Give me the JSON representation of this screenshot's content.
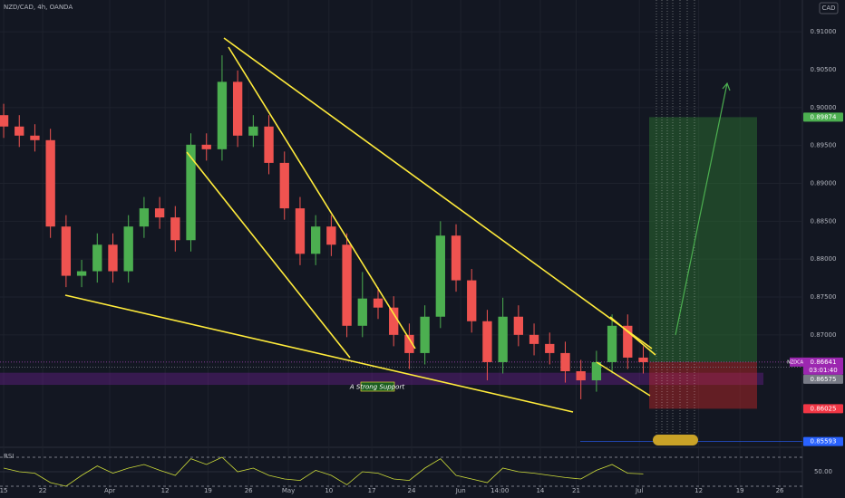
{
  "chart_data": {
    "type": "candlestick",
    "title": "NZD/CAD, 4h, OANDA",
    "currency": "CAD",
    "symbol": "NZDCAD",
    "countdown": "03:01:40",
    "annotation": "A Strong Support",
    "rsi_title": "RSI",
    "x": [
      0,
      2,
      4,
      6,
      8,
      10,
      12,
      14,
      16,
      18,
      20,
      22,
      24,
      26,
      28,
      30,
      32,
      34,
      36,
      38,
      40,
      42,
      44,
      46,
      48,
      50,
      52,
      54,
      56,
      58,
      60,
      62,
      64,
      66,
      68,
      70,
      72,
      74,
      76,
      78,
      80,
      82
    ],
    "open": [
      0.899,
      0.8975,
      0.8963,
      0.8957,
      0.8843,
      0.8778,
      0.8784,
      0.8819,
      0.8784,
      0.8843,
      0.8867,
      0.8855,
      0.8825,
      0.8951,
      0.8945,
      0.9034,
      0.8963,
      0.8975,
      0.8927,
      0.8867,
      0.8807,
      0.8843,
      0.8819,
      0.8712,
      0.8748,
      0.8736,
      0.87,
      0.8676,
      0.8724,
      0.8831,
      0.8772,
      0.8718,
      0.8664,
      0.8724,
      0.87,
      0.8688,
      0.8676,
      0.8652,
      0.864,
      0.8664,
      0.8712,
      0.867
    ],
    "high": [
      0.9005,
      0.899,
      0.8978,
      0.8972,
      0.8858,
      0.8799,
      0.8834,
      0.8834,
      0.8858,
      0.8882,
      0.8882,
      0.887,
      0.8966,
      0.8966,
      0.9069,
      0.9049,
      0.899,
      0.899,
      0.8942,
      0.8882,
      0.8858,
      0.8858,
      0.8834,
      0.8783,
      0.8763,
      0.8751,
      0.8715,
      0.8739,
      0.885,
      0.8846,
      0.8787,
      0.8733,
      0.8749,
      0.8739,
      0.8715,
      0.8703,
      0.8691,
      0.8667,
      0.8679,
      0.8727,
      0.8727,
      0.8685
    ],
    "low": [
      0.896,
      0.8948,
      0.8942,
      0.8828,
      0.8763,
      0.8763,
      0.8769,
      0.8769,
      0.8769,
      0.8828,
      0.884,
      0.881,
      0.881,
      0.893,
      0.893,
      0.8948,
      0.8948,
      0.8912,
      0.8852,
      0.8792,
      0.8792,
      0.8804,
      0.8697,
      0.8697,
      0.8721,
      0.8685,
      0.8655,
      0.8661,
      0.8709,
      0.8757,
      0.8703,
      0.864,
      0.8649,
      0.8685,
      0.8673,
      0.8661,
      0.8637,
      0.8615,
      0.8625,
      0.8649,
      0.8655,
      0.8649
    ],
    "close": [
      0.8975,
      0.8963,
      0.8957,
      0.8843,
      0.8778,
      0.8784,
      0.8819,
      0.8784,
      0.8843,
      0.8867,
      0.8855,
      0.8825,
      0.8951,
      0.8945,
      0.9034,
      0.8963,
      0.8975,
      0.8927,
      0.8867,
      0.8807,
      0.8843,
      0.8819,
      0.8712,
      0.8748,
      0.8736,
      0.87,
      0.8676,
      0.8724,
      0.8831,
      0.8772,
      0.8718,
      0.8664,
      0.8724,
      0.87,
      0.8688,
      0.8676,
      0.8652,
      0.864,
      0.8664,
      0.8712,
      0.867,
      0.8664
    ],
    "rsi": [
      55,
      50,
      48,
      35,
      30,
      45,
      58,
      48,
      55,
      60,
      52,
      45,
      68,
      60,
      70,
      50,
      55,
      45,
      40,
      38,
      52,
      45,
      32,
      50,
      48,
      40,
      38,
      55,
      68,
      45,
      40,
      35,
      55,
      50,
      48,
      45,
      42,
      40,
      52,
      60,
      48,
      47
    ],
    "up_color": "#4caf50",
    "down_color": "#ef5350",
    "xlim": [
      -0.47,
      102.4
    ],
    "ylim": [
      0.8554,
      0.9142
    ],
    "rsi_ylim": [
      20,
      80
    ],
    "rsi_ticks": [
      {
        "value": 50,
        "label": "50.00"
      }
    ],
    "yticks": [
      {
        "value": 0.91,
        "label": "0.91000"
      },
      {
        "value": 0.905,
        "label": "0.90500"
      },
      {
        "value": 0.9,
        "label": "0.90000"
      },
      {
        "value": 0.895,
        "label": "0.89500"
      },
      {
        "value": 0.89,
        "label": "0.89000"
      },
      {
        "value": 0.885,
        "label": "0.88500"
      },
      {
        "value": 0.88,
        "label": "0.88000"
      },
      {
        "value": 0.875,
        "label": "0.87500"
      },
      {
        "value": 0.87,
        "label": "0.87000"
      }
    ],
    "xticks": [
      {
        "value": 0,
        "label": "15"
      },
      {
        "value": 5,
        "label": "22"
      },
      {
        "value": 13.6,
        "label": "Apr"
      },
      {
        "value": 20.7,
        "label": "12"
      },
      {
        "value": 26.2,
        "label": "19"
      },
      {
        "value": 31.4,
        "label": "26"
      },
      {
        "value": 36.5,
        "label": "May"
      },
      {
        "value": 41.7,
        "label": "10"
      },
      {
        "value": 47.2,
        "label": "17"
      },
      {
        "value": 52.3,
        "label": "24"
      },
      {
        "value": 58.6,
        "label": "Jun"
      },
      {
        "value": 63.6,
        "label": "14:00"
      },
      {
        "value": 68.8,
        "label": "14"
      },
      {
        "value": 73.4,
        "label": "21"
      },
      {
        "value": 81.5,
        "label": "Jul"
      },
      {
        "value": 89.1,
        "label": "12"
      },
      {
        "value": 94.4,
        "label": "19"
      },
      {
        "value": 99.5,
        "label": "26"
      }
    ],
    "position": {
      "target": 0.89874,
      "entry": 0.86641,
      "stop": 0.86025
    },
    "levels": [
      0.86575,
      0.85593
    ],
    "support_zone": [
      0.8634,
      0.865
    ]
  }
}
